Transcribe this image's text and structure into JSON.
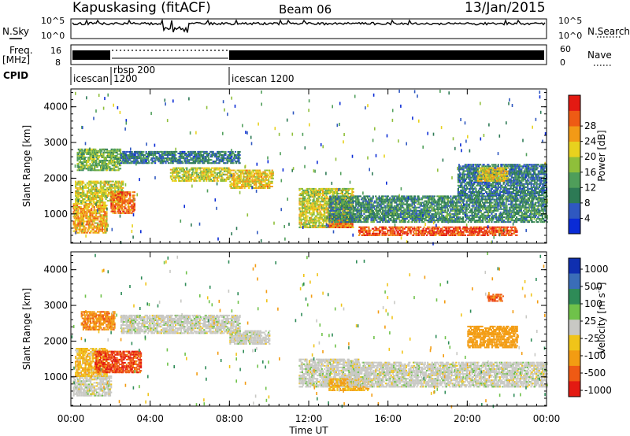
{
  "header": {
    "station": "Kapuskasing (fitACF)",
    "beam": "Beam 06",
    "date": "13/Jan/2015"
  },
  "left_labels": {
    "nsky": "N.Sky",
    "freq": "Freq.",
    "freq_unit": "[MHz]",
    "cpid": "CPID"
  },
  "right_labels": {
    "nsearch": "N.Search",
    "nave": "Nave"
  },
  "strip_ticks": {
    "noise_left_top": "10^5",
    "noise_left_bottom": "10^0",
    "noise_right_top": "10^5",
    "noise_right_bottom": "10^0",
    "freq_left_top": "16",
    "freq_left_bottom": "8",
    "nave_right_top": "60",
    "nave_right_bottom": "0"
  },
  "cpid_blocks": [
    {
      "start_hour": 0.0,
      "end_hour": 2.0,
      "label": "icescan",
      "sub": ""
    },
    {
      "start_hour": 2.0,
      "end_hour": 8.0,
      "label": "rbsp 200",
      "sub": "1200"
    },
    {
      "start_hour": 8.0,
      "end_hour": 24.0,
      "label": "icescan 1200",
      "sub": ""
    }
  ],
  "xaxis": {
    "label": "Time UT",
    "ticks": [
      "00:00",
      "04:00",
      "08:00",
      "12:00",
      "16:00",
      "20:00",
      "00:00"
    ],
    "range_hours": [
      0,
      24
    ]
  },
  "colors": {
    "power_scale": [
      "#0a2bd6",
      "#2f58c0",
      "#2d7a55",
      "#4f9e5a",
      "#8fbf3a",
      "#e8d21e",
      "#f29a16",
      "#ee5b14",
      "#e31a12"
    ],
    "velocity_scale": [
      "#0f2fb0",
      "#3a6db8",
      "#2e8b57",
      "#6fc24a",
      "#c8c8c4",
      "#f0c419",
      "#f39c12",
      "#ef5a14",
      "#e31a12"
    ]
  },
  "chart_data": [
    {
      "type": "heatmap",
      "name": "power",
      "ylabel": "Slant Range [km]",
      "ylim": [
        180,
        4500
      ],
      "yticks": [
        "1000",
        "2000",
        "3000",
        "4000"
      ],
      "xlim_hours": [
        0,
        24
      ],
      "colorbar": {
        "label": "Power [dB]",
        "ticks": [
          "4",
          "8",
          "12",
          "16",
          "20",
          "24",
          "28"
        ],
        "range": [
          0,
          32
        ]
      },
      "regions": [
        {
          "t0": 0.1,
          "t1": 1.8,
          "r0": 450,
          "r1": 1300,
          "level": 22
        },
        {
          "t0": 0.2,
          "t1": 2.6,
          "r0": 1300,
          "r1": 1900,
          "level": 18
        },
        {
          "t0": 2.0,
          "t1": 3.2,
          "r0": 1000,
          "r1": 1600,
          "level": 26
        },
        {
          "t0": 0.3,
          "t1": 2.5,
          "r0": 2200,
          "r1": 2800,
          "level": 14
        },
        {
          "t0": 2.5,
          "t1": 8.5,
          "r0": 2400,
          "r1": 2750,
          "level": 8
        },
        {
          "t0": 5.0,
          "t1": 8.0,
          "r0": 1900,
          "r1": 2300,
          "level": 18
        },
        {
          "t0": 8.0,
          "t1": 10.2,
          "r0": 1700,
          "r1": 2200,
          "level": 20
        },
        {
          "t0": 11.5,
          "t1": 14.2,
          "r0": 600,
          "r1": 1700,
          "level": 18
        },
        {
          "t0": 13.0,
          "t1": 14.2,
          "r0": 600,
          "r1": 1000,
          "level": 26
        },
        {
          "t0": 14.5,
          "t1": 22.5,
          "r0": 380,
          "r1": 650,
          "level": 28
        },
        {
          "t0": 13.0,
          "t1": 24.0,
          "r0": 750,
          "r1": 1500,
          "level": 10
        },
        {
          "t0": 19.5,
          "t1": 24.0,
          "r0": 1500,
          "r1": 2400,
          "level": 8
        },
        {
          "t0": 20.5,
          "t1": 22.0,
          "r0": 1900,
          "r1": 2300,
          "level": 20
        }
      ]
    },
    {
      "type": "heatmap",
      "name": "velocity",
      "ylabel": "Slant Range [km]",
      "ylim": [
        180,
        4500
      ],
      "yticks": [
        "1000",
        "2000",
        "3000",
        "4000"
      ],
      "xlim_hours": [
        0,
        24
      ],
      "colorbar": {
        "label": "Velocity [m s^-1]",
        "ticks": [
          "1000",
          "500",
          "100",
          "25",
          "-25",
          "-100",
          "-500",
          "-1000"
        ],
        "range": [
          -1200,
          1200
        ]
      },
      "regions": [
        {
          "t0": 0.1,
          "t1": 2.0,
          "r0": 450,
          "r1": 1000,
          "level": 0
        },
        {
          "t0": 0.2,
          "t1": 1.8,
          "r0": 1000,
          "r1": 1800,
          "level": -80
        },
        {
          "t0": 1.2,
          "t1": 3.5,
          "r0": 1100,
          "r1": 1700,
          "level": -900
        },
        {
          "t0": 0.5,
          "t1": 2.2,
          "r0": 2300,
          "r1": 2800,
          "level": -400
        },
        {
          "t0": 2.5,
          "t1": 8.5,
          "r0": 2200,
          "r1": 2700,
          "level": 0
        },
        {
          "t0": 8.0,
          "t1": 10.0,
          "r0": 1900,
          "r1": 2300,
          "level": 0
        },
        {
          "t0": 11.5,
          "t1": 14.5,
          "r0": 700,
          "r1": 1500,
          "level": 0
        },
        {
          "t0": 13.0,
          "t1": 15.0,
          "r0": 600,
          "r1": 950,
          "level": -120
        },
        {
          "t0": 14.0,
          "t1": 24.0,
          "r0": 700,
          "r1": 1400,
          "level": 0
        },
        {
          "t0": 20.0,
          "t1": 22.5,
          "r0": 1800,
          "r1": 2400,
          "level": -300
        },
        {
          "t0": 21.0,
          "t1": 21.8,
          "r0": 3100,
          "r1": 3300,
          "level": -700
        }
      ]
    }
  ]
}
